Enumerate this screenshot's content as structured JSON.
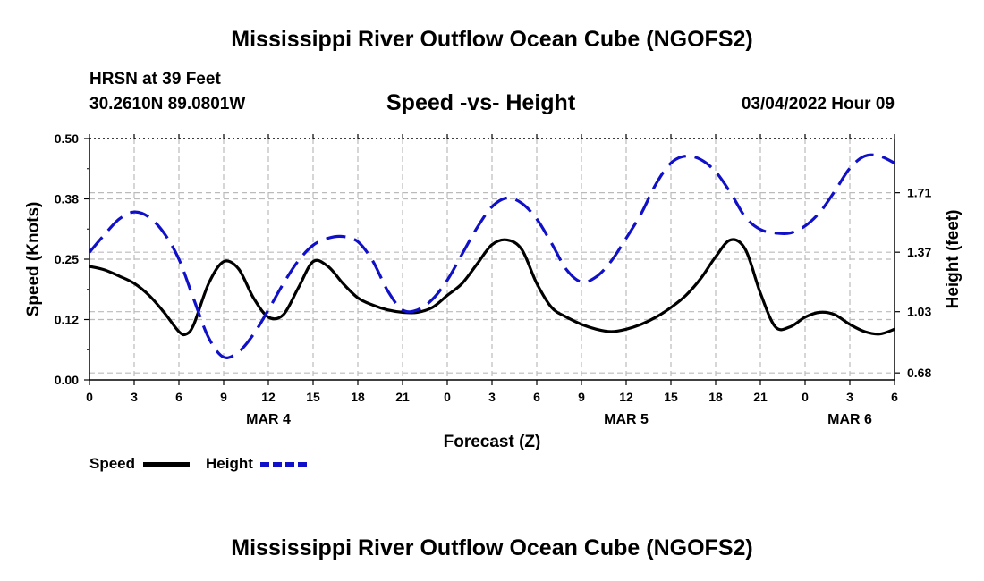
{
  "page": {
    "title": "Mississippi River Outflow Ocean Cube (NGOFS2)",
    "station": "HRSN at 39 Feet",
    "coordinates": "30.2610N  89.0801W",
    "subtitle": "Speed -vs- Height",
    "datetime": "03/04/2022 Hour 09",
    "bottom_title": "Mississippi River Outflow Ocean Cube (NGOFS2)"
  },
  "legend": {
    "speed_label": "Speed",
    "height_label": "Height"
  },
  "colors": {
    "speed": "#000000",
    "height": "#1010c8",
    "grid": "#bbbbbb"
  },
  "chart_data": {
    "type": "line",
    "title": "Speed -vs- Height",
    "xlabel": "Forecast (Z)",
    "ylabel": "Speed (Knots)",
    "y2label": "Height (feet)",
    "xlim": [
      0,
      54
    ],
    "ylim": [
      0,
      0.5
    ],
    "y2lim": [
      0.64,
      2.02
    ],
    "x_ticks": [
      0,
      3,
      6,
      9,
      12,
      15,
      18,
      21,
      24,
      27,
      30,
      33,
      36,
      39,
      42,
      45,
      48,
      51,
      54
    ],
    "x_tick_labels": [
      "0",
      "3",
      "6",
      "9",
      "12",
      "15",
      "18",
      "21",
      "0",
      "3",
      "6",
      "9",
      "12",
      "15",
      "18",
      "21",
      "0",
      "3",
      "6"
    ],
    "y_ticks": [
      0,
      0.125,
      0.25,
      0.375,
      0.5
    ],
    "y_tick_labels": [
      "0.00",
      "0.12",
      "0.25",
      "0.38",
      "0.50"
    ],
    "y2_ticks": [
      0.68,
      1.03,
      1.37,
      1.71
    ],
    "y2_tick_labels": [
      "0.68",
      "1.03",
      "1.37",
      "1.71"
    ],
    "date_labels": [
      {
        "x": 12,
        "label": "MAR 4"
      },
      {
        "x": 36,
        "label": "MAR 5"
      },
      {
        "x": 51,
        "label": "MAR 6"
      }
    ],
    "grid": true,
    "legend_position": "bottom-left",
    "series": [
      {
        "name": "Speed",
        "axis": "left",
        "style": "solid",
        "x": [
          0,
          1,
          2,
          3,
          4,
          5,
          6,
          6.5,
          7,
          8,
          9,
          10,
          11,
          12,
          13,
          14,
          15,
          16,
          17,
          18,
          19,
          20,
          21,
          22,
          23,
          24,
          25,
          26,
          27,
          28,
          29,
          30,
          31,
          32,
          33,
          34,
          35,
          36,
          37,
          38,
          39,
          40,
          41,
          42,
          43,
          44,
          45,
          46,
          47,
          48,
          49,
          50,
          51,
          52,
          53,
          54
        ],
        "values": [
          0.235,
          0.228,
          0.215,
          0.2,
          0.175,
          0.14,
          0.1,
          0.095,
          0.115,
          0.2,
          0.245,
          0.23,
          0.17,
          0.13,
          0.135,
          0.19,
          0.245,
          0.235,
          0.2,
          0.17,
          0.155,
          0.145,
          0.14,
          0.14,
          0.15,
          0.175,
          0.2,
          0.24,
          0.28,
          0.29,
          0.27,
          0.2,
          0.15,
          0.13,
          0.115,
          0.105,
          0.1,
          0.105,
          0.115,
          0.13,
          0.15,
          0.175,
          0.21,
          0.255,
          0.29,
          0.27,
          0.18,
          0.11,
          0.11,
          0.13,
          0.14,
          0.135,
          0.115,
          0.1,
          0.095,
          0.105
        ]
      },
      {
        "name": "Height",
        "axis": "right",
        "style": "dashed",
        "x": [
          0,
          1,
          2,
          3,
          4,
          5,
          6,
          7,
          8,
          9,
          10,
          11,
          12,
          13,
          14,
          15,
          16,
          17,
          18,
          19,
          20,
          21,
          22,
          23,
          24,
          25,
          26,
          27,
          28,
          29,
          30,
          31,
          32,
          33,
          34,
          35,
          36,
          37,
          38,
          39,
          40,
          41,
          42,
          43,
          44,
          45,
          46,
          47,
          48,
          49,
          50,
          51,
          52,
          53,
          54
        ],
        "values": [
          1.37,
          1.47,
          1.56,
          1.6,
          1.57,
          1.48,
          1.33,
          1.1,
          0.88,
          0.77,
          0.8,
          0.9,
          1.04,
          1.19,
          1.32,
          1.41,
          1.45,
          1.46,
          1.43,
          1.32,
          1.15,
          1.04,
          1.04,
          1.1,
          1.21,
          1.36,
          1.51,
          1.63,
          1.68,
          1.65,
          1.56,
          1.42,
          1.27,
          1.2,
          1.23,
          1.32,
          1.45,
          1.59,
          1.76,
          1.88,
          1.92,
          1.9,
          1.83,
          1.71,
          1.57,
          1.5,
          1.48,
          1.48,
          1.52,
          1.6,
          1.72,
          1.85,
          1.92,
          1.92,
          1.88
        ]
      }
    ]
  }
}
